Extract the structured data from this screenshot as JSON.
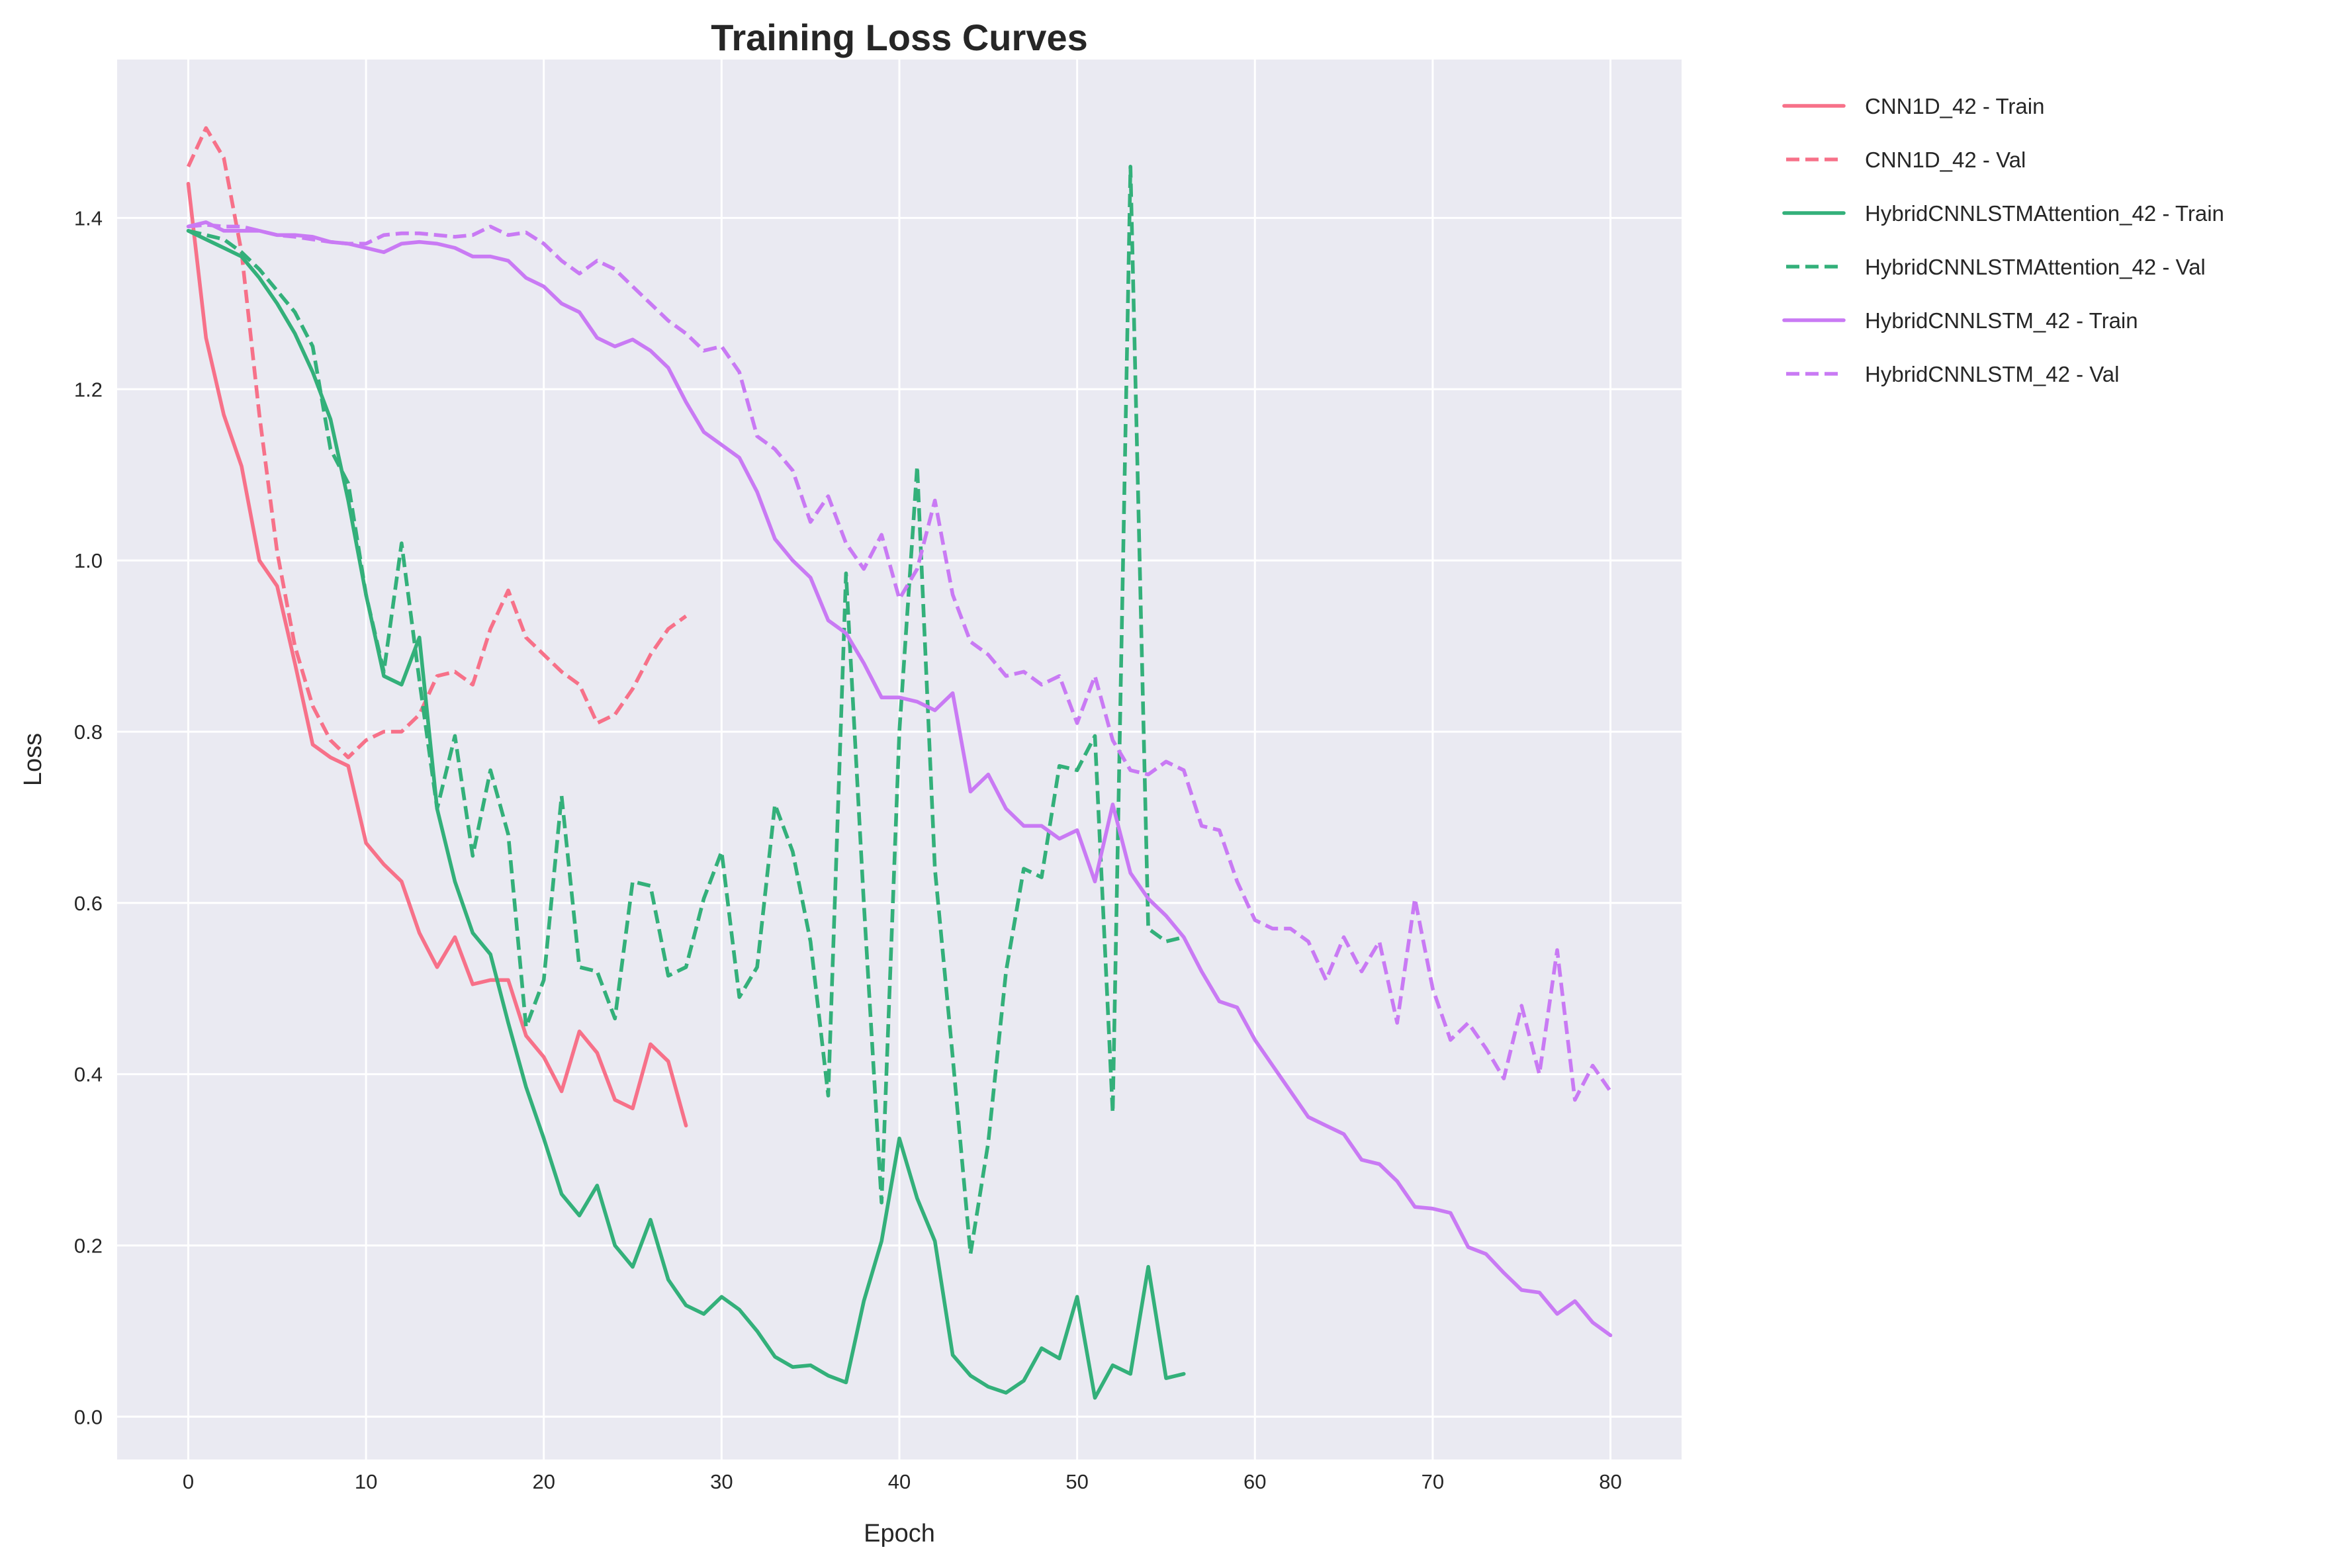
{
  "chart_data": {
    "type": "line",
    "title": "Training Loss Curves",
    "xlabel": "Epoch",
    "ylabel": "Loss",
    "xlim": [
      -4,
      84
    ],
    "ylim": [
      -0.05,
      1.585
    ],
    "xticks": [
      0,
      10,
      20,
      30,
      40,
      50,
      60,
      70,
      80
    ],
    "yticks": [
      0.0,
      0.2,
      0.4,
      0.6,
      0.8,
      1.0,
      1.2,
      1.4
    ],
    "xtick_labels": [
      "0",
      "10",
      "20",
      "30",
      "40",
      "50",
      "60",
      "70",
      "80"
    ],
    "ytick_labels": [
      "0.0",
      "0.2",
      "0.4",
      "0.6",
      "0.8",
      "1.0",
      "1.2",
      "1.4"
    ],
    "grid": true,
    "background": "#eaeaf2",
    "legend_position": "outside-top-right",
    "series": [
      {
        "name": "CNN1D_42 - Train",
        "color": "#f77189",
        "style": "solid",
        "values": [
          1.44,
          1.26,
          1.17,
          1.11,
          1.0,
          0.97,
          0.88,
          0.785,
          0.77,
          0.76,
          0.67,
          0.645,
          0.625,
          0.565,
          0.525,
          0.56,
          0.505,
          0.51,
          0.51,
          0.445,
          0.42,
          0.38,
          0.45,
          0.425,
          0.37,
          0.36,
          0.435,
          0.415,
          0.34
        ]
      },
      {
        "name": "CNN1D_42 - Val",
        "color": "#f77189",
        "style": "dashed",
        "values": [
          1.46,
          1.505,
          1.47,
          1.36,
          1.17,
          1.01,
          0.9,
          0.83,
          0.79,
          0.77,
          0.79,
          0.8,
          0.8,
          0.82,
          0.865,
          0.87,
          0.855,
          0.92,
          0.965,
          0.91,
          0.89,
          0.87,
          0.855,
          0.81,
          0.82,
          0.85,
          0.89,
          0.92,
          0.935
        ]
      },
      {
        "name": "HybridCNNLSTMAttention_42 - Train",
        "color": "#33b07a",
        "style": "solid",
        "values": [
          1.385,
          1.375,
          1.365,
          1.355,
          1.33,
          1.3,
          1.265,
          1.22,
          1.165,
          1.07,
          0.96,
          0.865,
          0.855,
          0.91,
          0.71,
          0.625,
          0.565,
          0.54,
          0.46,
          0.385,
          0.325,
          0.26,
          0.235,
          0.27,
          0.2,
          0.175,
          0.23,
          0.16,
          0.13,
          0.12,
          0.14,
          0.125,
          0.1,
          0.07,
          0.058,
          0.06,
          0.048,
          0.04,
          0.135,
          0.205,
          0.325,
          0.255,
          0.205,
          0.072,
          0.048,
          0.035,
          0.028,
          0.042,
          0.08,
          0.068,
          0.14,
          0.022,
          0.06,
          0.05,
          0.175,
          0.045,
          0.05
        ]
      },
      {
        "name": "HybridCNNLSTMAttention_42 - Val",
        "color": "#33b07a",
        "style": "dashed",
        "values": [
          1.385,
          1.38,
          1.375,
          1.36,
          1.34,
          1.315,
          1.29,
          1.25,
          1.13,
          1.09,
          0.96,
          0.87,
          1.02,
          0.86,
          0.71,
          0.795,
          0.655,
          0.755,
          0.68,
          0.455,
          0.51,
          0.725,
          0.525,
          0.52,
          0.465,
          0.625,
          0.62,
          0.515,
          0.525,
          0.605,
          0.66,
          0.49,
          0.525,
          0.715,
          0.66,
          0.555,
          0.375,
          0.985,
          0.6,
          0.25,
          0.8,
          1.11,
          0.64,
          0.42,
          0.19,
          0.32,
          0.52,
          0.64,
          0.63,
          0.76,
          0.755,
          0.795,
          0.355,
          1.46,
          0.57,
          0.555,
          0.56
        ]
      },
      {
        "name": "HybridCNNLSTM_42 - Train",
        "color": "#c97af4",
        "style": "solid",
        "values": [
          1.39,
          1.395,
          1.385,
          1.385,
          1.385,
          1.38,
          1.38,
          1.378,
          1.372,
          1.37,
          1.365,
          1.36,
          1.37,
          1.372,
          1.37,
          1.365,
          1.355,
          1.355,
          1.35,
          1.33,
          1.32,
          1.3,
          1.29,
          1.26,
          1.25,
          1.258,
          1.245,
          1.225,
          1.185,
          1.15,
          1.135,
          1.12,
          1.08,
          1.025,
          1.0,
          0.98,
          0.93,
          0.915,
          0.88,
          0.84,
          0.84,
          0.835,
          0.825,
          0.845,
          0.73,
          0.75,
          0.71,
          0.69,
          0.69,
          0.675,
          0.685,
          0.625,
          0.715,
          0.635,
          0.605,
          0.585,
          0.56,
          0.52,
          0.485,
          0.478,
          0.44,
          0.41,
          0.38,
          0.35,
          0.34,
          0.33,
          0.3,
          0.295,
          0.275,
          0.245,
          0.243,
          0.238,
          0.198,
          0.19,
          0.168,
          0.148,
          0.145,
          0.12,
          0.135,
          0.11,
          0.095
        ]
      },
      {
        "name": "HybridCNNLSTM_42 - Val",
        "color": "#c97af4",
        "style": "dashed",
        "values": [
          1.39,
          1.392,
          1.39,
          1.39,
          1.385,
          1.38,
          1.378,
          1.375,
          1.372,
          1.37,
          1.37,
          1.38,
          1.382,
          1.382,
          1.38,
          1.378,
          1.38,
          1.39,
          1.38,
          1.383,
          1.37,
          1.35,
          1.335,
          1.35,
          1.34,
          1.32,
          1.3,
          1.28,
          1.265,
          1.245,
          1.25,
          1.22,
          1.145,
          1.13,
          1.105,
          1.045,
          1.075,
          1.02,
          0.99,
          1.03,
          0.955,
          0.99,
          1.07,
          0.96,
          0.905,
          0.89,
          0.865,
          0.87,
          0.855,
          0.865,
          0.81,
          0.865,
          0.79,
          0.755,
          0.75,
          0.765,
          0.755,
          0.69,
          0.685,
          0.625,
          0.58,
          0.57,
          0.57,
          0.555,
          0.51,
          0.56,
          0.52,
          0.555,
          0.46,
          0.605,
          0.5,
          0.44,
          0.46,
          0.43,
          0.395,
          0.48,
          0.4,
          0.545,
          0.37,
          0.41,
          0.38
        ]
      }
    ]
  }
}
